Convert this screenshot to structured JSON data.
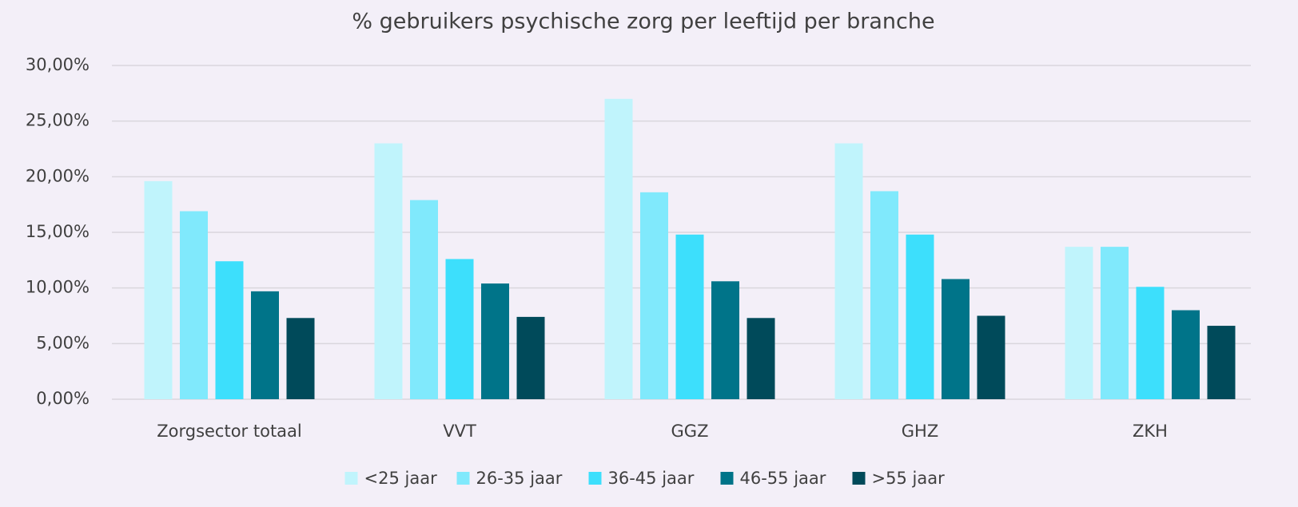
{
  "chart_data": {
    "type": "bar",
    "title": "% gebruikers psychische zorg per leeftijd per branche",
    "categories": [
      "Zorgsector totaal",
      "VVT",
      "GGZ",
      "GHZ",
      "ZKH"
    ],
    "series": [
      {
        "name": "<25 jaar",
        "color": "#c0f4fc",
        "values": [
          19.6,
          23.0,
          27.0,
          23.0,
          13.7
        ]
      },
      {
        "name": "26-35 jaar",
        "color": "#80e9fc",
        "values": [
          16.9,
          17.9,
          18.6,
          18.7,
          13.7
        ]
      },
      {
        "name": "36-45 jaar",
        "color": "#3ddffc",
        "values": [
          12.4,
          12.6,
          14.8,
          14.8,
          10.1
        ]
      },
      {
        "name": "46-55 jaar",
        "color": "#007489",
        "values": [
          9.7,
          10.4,
          10.6,
          10.8,
          8.0
        ]
      },
      {
        "name": ">55 jaar",
        "color": "#004a5a",
        "values": [
          7.3,
          7.4,
          7.3,
          7.5,
          6.6
        ]
      }
    ],
    "ylim": [
      0,
      30
    ],
    "yticks": [
      {
        "value": 0,
        "label": "0,00%"
      },
      {
        "value": 5,
        "label": "5,00%"
      },
      {
        "value": 10,
        "label": "10,00%"
      },
      {
        "value": 15,
        "label": "15,00%"
      },
      {
        "value": 20,
        "label": "20,00%"
      },
      {
        "value": 25,
        "label": "25,00%"
      },
      {
        "value": 30,
        "label": "30,00%"
      }
    ],
    "grid": true,
    "legend": "bottom"
  }
}
